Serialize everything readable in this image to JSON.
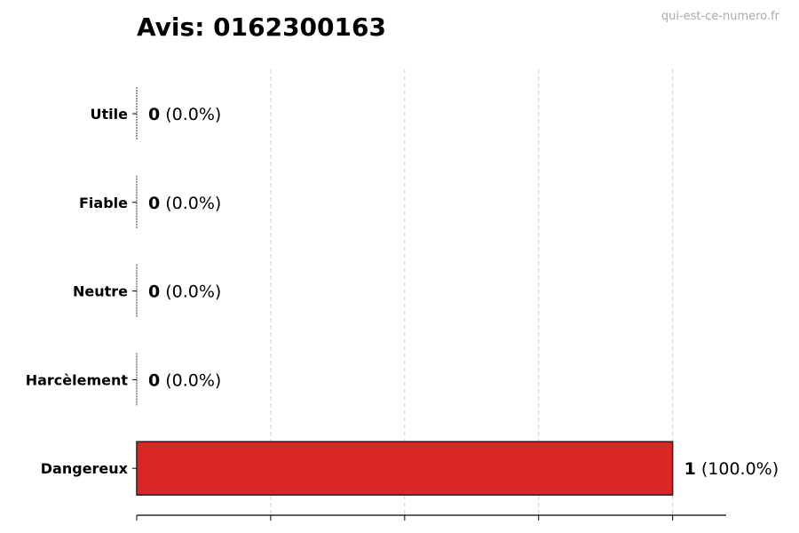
{
  "title": "Avis: 0162300163",
  "watermark": "qui-est-ce-numero.fr",
  "chart_data": {
    "type": "bar",
    "orientation": "horizontal",
    "title": "Avis: 0162300163",
    "categories": [
      "Utile",
      "Fiable",
      "Neutre",
      "Harcèlement",
      "Dangereux"
    ],
    "values": [
      0,
      0,
      0,
      0,
      1
    ],
    "value_labels": [
      {
        "count": "0",
        "pct": "(0.0%)"
      },
      {
        "count": "0",
        "pct": "(0.0%)"
      },
      {
        "count": "0",
        "pct": "(0.0%)"
      },
      {
        "count": "0",
        "pct": "(0.0%)"
      },
      {
        "count": "1",
        "pct": "(100.0%)"
      }
    ],
    "colors": [
      "#dc2626",
      "#dc2626",
      "#dc2626",
      "#dc2626",
      "#dc2626"
    ],
    "xlabel": "",
    "ylabel": "",
    "xlim": [
      0,
      1.1
    ],
    "xticks": [
      0,
      0.25,
      0.5,
      0.75,
      1.0
    ],
    "xtick_labels_shown": false,
    "grid": "vertical dashed"
  }
}
